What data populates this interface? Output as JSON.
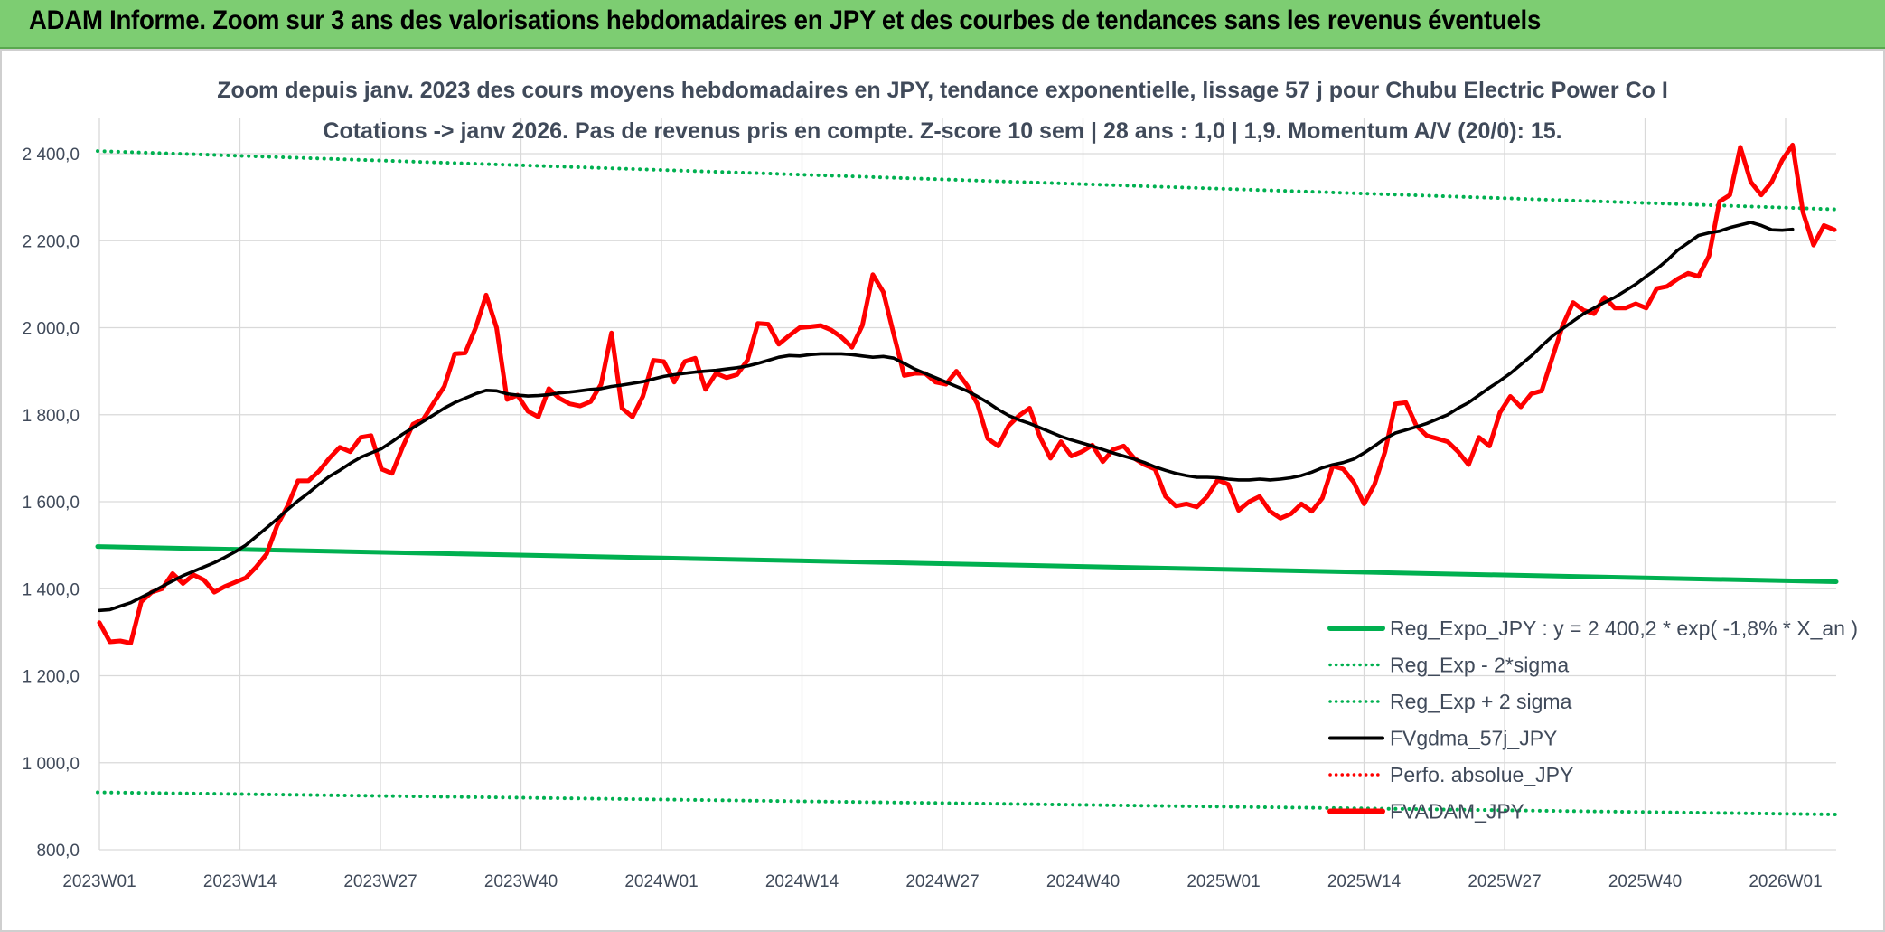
{
  "banner": {
    "title": "ADAM Informe. Zoom sur 3 ans des valorisations hebdomadaires en JPY et des courbes de tendances sans les revenus éventuels"
  },
  "colors": {
    "banner": "#7dcd72",
    "trend": "#00b050",
    "sigma": "#00b050",
    "gdma": "#000000",
    "perf": "#ff0000",
    "adam": "#ff0000",
    "grid": "#d9d9d9",
    "text": "#404a5a"
  },
  "chart_data": {
    "type": "line",
    "title": "Zoom depuis janv. 2023 des cours moyens hebdomadaires en JPY, tendance exponentielle, lissage 57 j pour Chubu Electric Power Co I",
    "subtitle": "Cotations -> janv 2026. Pas de revenus pris en compte. Z-score 10 sem | 28 ans : 1,0 | 1,9. Momentum A/V (20/0): 15.",
    "xlabel": "",
    "ylabel": "",
    "ylim": [
      800,
      2400
    ],
    "y_ticks": [
      "2 400,0",
      "2 200,0",
      "2 000,0",
      "1 800,0",
      "1 600,0",
      "1 400,0",
      "1 200,0",
      "1 000,0",
      "800,0"
    ],
    "y_tick_values": [
      2400,
      2200,
      2000,
      1800,
      1600,
      1400,
      1200,
      1000,
      800
    ],
    "x_ticks": [
      "2023W01",
      "2023W14",
      "2023W27",
      "2023W40",
      "2024W01",
      "2024W14",
      "2024W27",
      "2024W40",
      "2025W01",
      "2025W14",
      "2025W27",
      "2025W40",
      "2026W01"
    ],
    "grid": true,
    "legend_position": "bottom-right",
    "series": [
      {
        "name": "Reg_Expo_JPY : y = 2 400,2 * exp( -1,8% * X_an )",
        "style": "solid-thick",
        "color": "#00b050",
        "values": [
          1497,
          1416
        ]
      },
      {
        "name": "Reg_Exp - 2*sigma",
        "style": "dotted",
        "color": "#00b050",
        "values": [
          932,
          881
        ]
      },
      {
        "name": "Reg_Exp + 2 sigma",
        "style": "dotted",
        "color": "#00b050",
        "values": [
          2406,
          2272
        ]
      },
      {
        "name": "FVgdma_57j_JPY",
        "style": "solid",
        "color": "#000000",
        "values": [
          1350,
          1352,
          1360,
          1368,
          1380,
          1392,
          1405,
          1418,
          1430,
          1440,
          1450,
          1460,
          1472,
          1485,
          1500,
          1520,
          1540,
          1560,
          1582,
          1602,
          1620,
          1640,
          1658,
          1672,
          1688,
          1702,
          1712,
          1722,
          1738,
          1755,
          1770,
          1785,
          1800,
          1815,
          1828,
          1838,
          1848,
          1856,
          1855,
          1848,
          1845,
          1843,
          1844,
          1846,
          1850,
          1852,
          1855,
          1858,
          1860,
          1865,
          1868,
          1872,
          1876,
          1882,
          1888,
          1892,
          1895,
          1898,
          1900,
          1902,
          1905,
          1908,
          1912,
          1918,
          1925,
          1932,
          1936,
          1935,
          1938,
          1940,
          1940,
          1940,
          1938,
          1935,
          1932,
          1934,
          1930,
          1918,
          1905,
          1895,
          1885,
          1875,
          1865,
          1855,
          1842,
          1828,
          1812,
          1798,
          1788,
          1780,
          1770,
          1760,
          1750,
          1742,
          1735,
          1728,
          1720,
          1712,
          1705,
          1698,
          1690,
          1680,
          1672,
          1665,
          1660,
          1656,
          1656,
          1655,
          1652,
          1650,
          1650,
          1652,
          1650,
          1652,
          1655,
          1660,
          1668,
          1678,
          1685,
          1690,
          1698,
          1712,
          1728,
          1745,
          1758,
          1765,
          1772,
          1780,
          1790,
          1800,
          1815,
          1828,
          1845,
          1862,
          1878,
          1895,
          1915,
          1935,
          1958,
          1980,
          1998,
          2015,
          2032,
          2045,
          2058,
          2070,
          2085,
          2100,
          2118,
          2135,
          2155,
          2178,
          2195,
          2212,
          2218,
          2222,
          2230,
          2236,
          2242,
          2235,
          2225,
          2224,
          2226
        ]
      },
      {
        "name": "Perfo. absolue_JPY",
        "style": "dotted",
        "color": "#ff0000",
        "values": []
      },
      {
        "name": "FVADAM_JPY",
        "style": "solid-thick",
        "color": "#ff0000",
        "values": [
          1322,
          1278,
          1280,
          1275,
          1370,
          1392,
          1400,
          1435,
          1412,
          1432,
          1420,
          1392,
          1405,
          1415,
          1425,
          1450,
          1480,
          1545,
          1590,
          1648,
          1648,
          1670,
          1700,
          1725,
          1715,
          1748,
          1752,
          1675,
          1665,
          1725,
          1778,
          1790,
          1828,
          1865,
          1940,
          1942,
          2000,
          2075,
          2000,
          1835,
          1845,
          1808,
          1795,
          1860,
          1838,
          1825,
          1820,
          1830,
          1870,
          1988,
          1815,
          1795,
          1842,
          1925,
          1922,
          1875,
          1922,
          1930,
          1858,
          1895,
          1885,
          1892,
          1925,
          2010,
          2008,
          1962,
          1982,
          2000,
          2002,
          2005,
          1995,
          1978,
          1955,
          2005,
          2122,
          2082,
          1985,
          1890,
          1895,
          1895,
          1875,
          1870,
          1900,
          1868,
          1825,
          1745,
          1728,
          1775,
          1798,
          1815,
          1748,
          1700,
          1738,
          1705,
          1715,
          1730,
          1692,
          1720,
          1728,
          1700,
          1685,
          1675,
          1612,
          1590,
          1595,
          1588,
          1612,
          1650,
          1640,
          1580,
          1600,
          1612,
          1578,
          1562,
          1572,
          1595,
          1578,
          1608,
          1682,
          1675,
          1645,
          1595,
          1640,
          1715,
          1825,
          1828,
          1775,
          1752,
          1745,
          1738,
          1715,
          1685,
          1748,
          1728,
          1805,
          1842,
          1818,
          1848,
          1855,
          1930,
          2005,
          2058,
          2040,
          2032,
          2070,
          2045,
          2045,
          2055,
          2045,
          2090,
          2095,
          2112,
          2125,
          2118,
          2165,
          2290,
          2305,
          2415,
          2335,
          2305,
          2335,
          2385,
          2420,
          2265,
          2190,
          2235,
          2225
        ]
      }
    ]
  }
}
